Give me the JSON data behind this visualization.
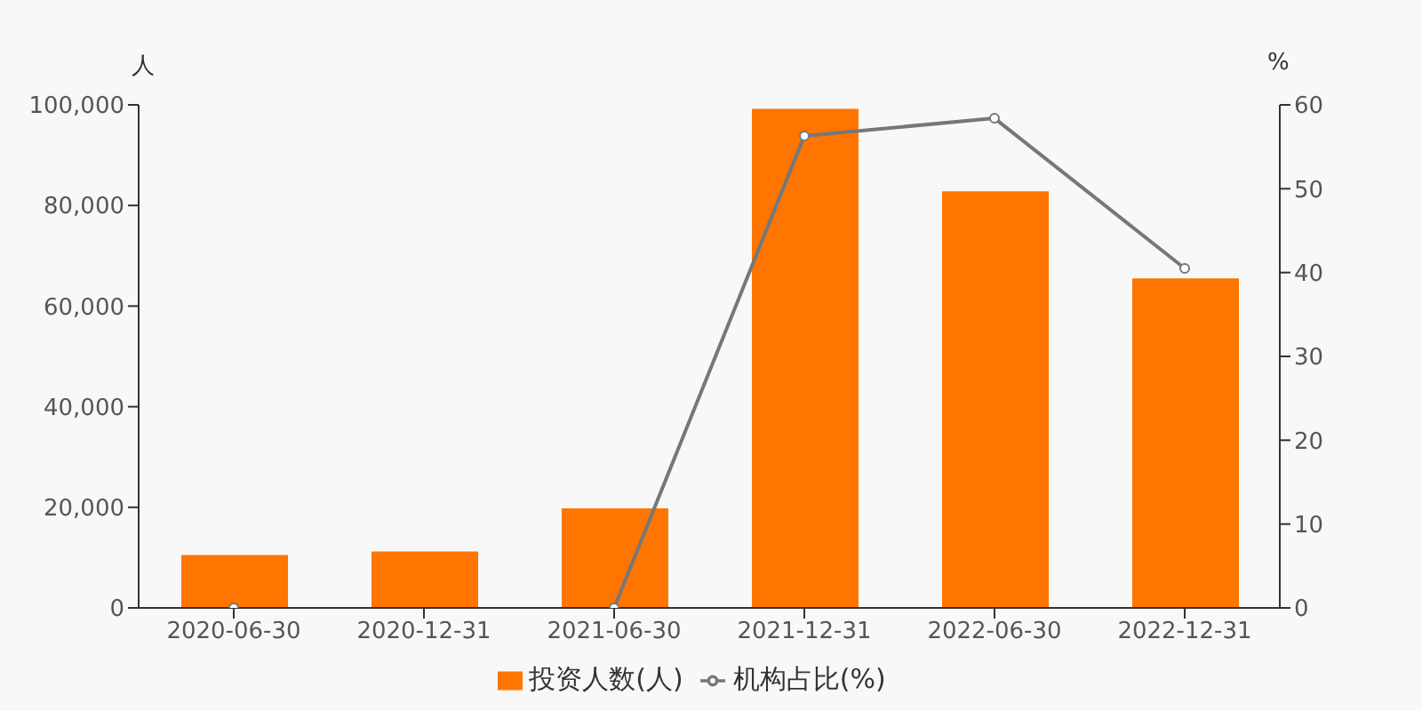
{
  "chart_data": {
    "type": "bar",
    "ylabel": "人",
    "y2label": "%",
    "categories": [
      "2020-06-30",
      "2020-12-31",
      "2021-06-30",
      "2021-12-31",
      "2022-06-30",
      "2022-12-31"
    ],
    "series": [
      {
        "name": "投资人数(人)",
        "color": "#ff7500",
        "values": [
          10500,
          11200,
          19800,
          99200,
          82800,
          65500
        ]
      },
      {
        "name": "机构占比(%)",
        "type": "line",
        "axis": "y2",
        "color": "#777777",
        "marker": "circle",
        "values": [
          0,
          null,
          0,
          56.3,
          58.4,
          40.5
        ]
      }
    ],
    "ylim": [
      0,
      100000
    ],
    "yticks": [
      {
        "value": 0,
        "label": "0"
      },
      {
        "value": 20000,
        "label": "20,000"
      },
      {
        "value": 40000,
        "label": "40,000"
      },
      {
        "value": 60000,
        "label": "60,000"
      },
      {
        "value": 80000,
        "label": "80,000"
      },
      {
        "value": 100000,
        "label": "100,000"
      }
    ],
    "y2lim": [
      0,
      60
    ],
    "y2ticks": [
      0,
      10,
      20,
      30,
      40,
      50,
      60
    ],
    "grid": false,
    "legend": "bottom"
  }
}
